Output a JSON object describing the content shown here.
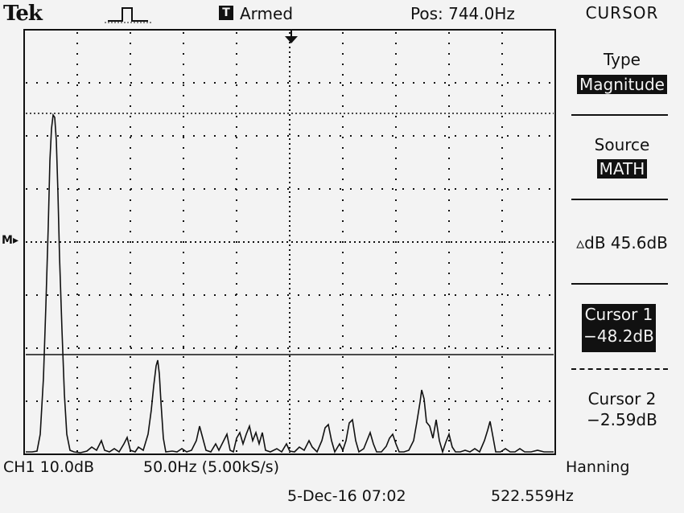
{
  "header": {
    "brand": "Tek",
    "trigger_state_icon": "T",
    "status": "Armed",
    "position": "Pos: 744.0Hz",
    "menu_title": "CURSOR"
  },
  "menu": {
    "type_label": "Type",
    "type_value": "Magnitude",
    "source_label": "Source",
    "source_value": "MATH",
    "delta": "▵dB 45.6dB",
    "cursor1_label": "Cursor 1",
    "cursor1_value": "−48.2dB",
    "cursor2_label": "Cursor 2",
    "cursor2_value": "−2.59dB"
  },
  "footer": {
    "channel_scale": "CH1 10.0dB",
    "freq_scale": "50.0Hz (5.00kS/s)",
    "window": "Hanning",
    "datetime": "5-Dec-16 07:02",
    "trigger_freq": "522.559Hz"
  },
  "markers": {
    "math_ref": "M"
  },
  "icons": {
    "trigger": "pulse-trigger-icon",
    "trigger_position": "trigger-position-arrow-icon"
  },
  "colors": {
    "background": "#f3f3f3",
    "foreground": "#111111"
  }
}
